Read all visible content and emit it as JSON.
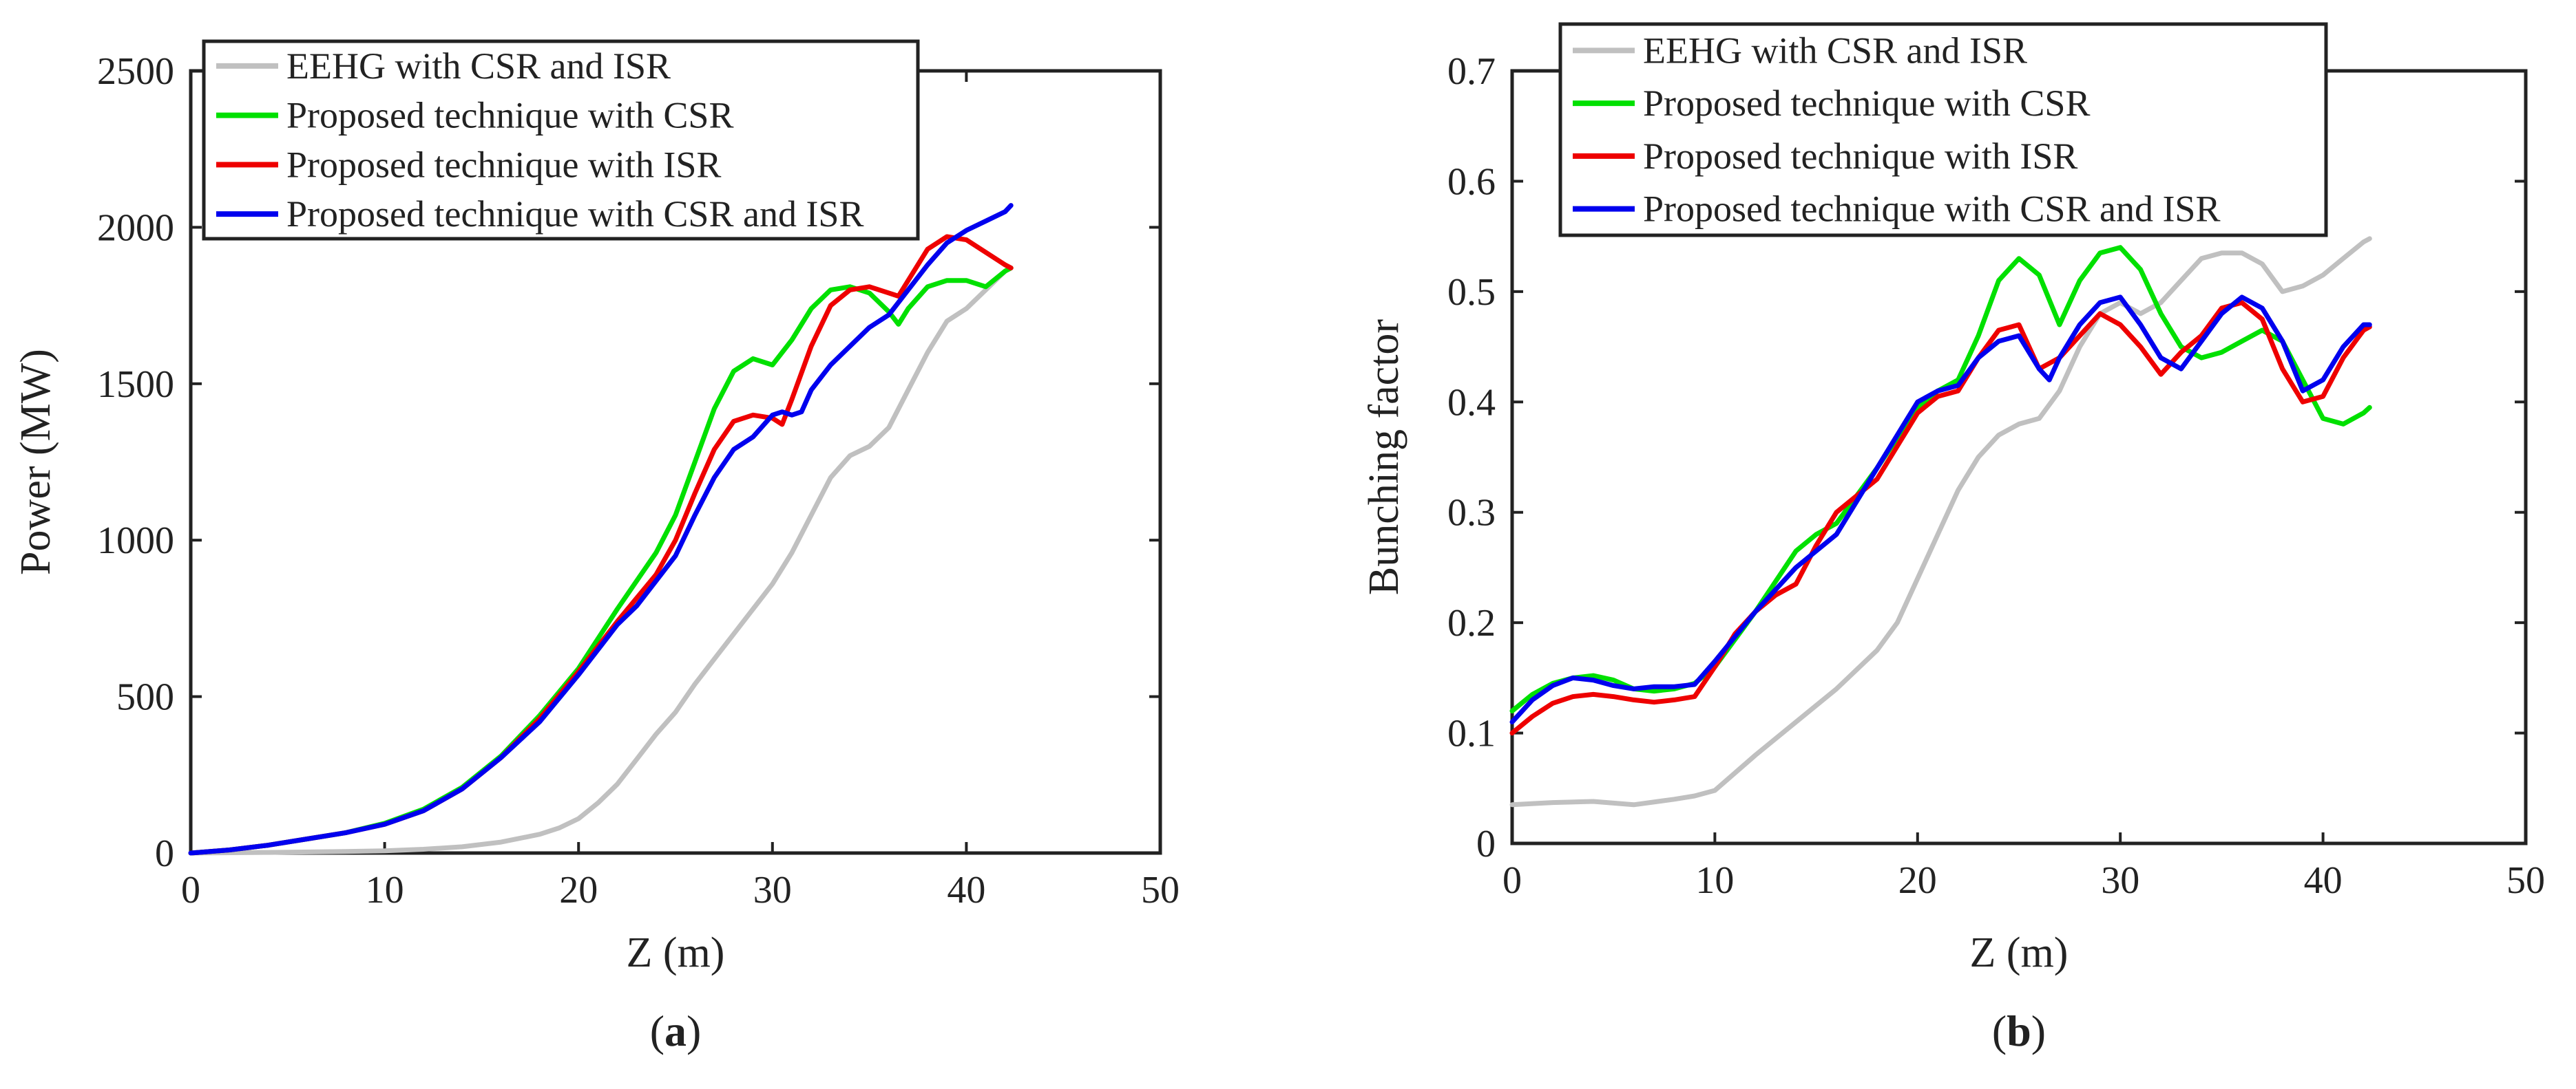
{
  "chart_data": [
    {
      "type": "line",
      "panel_label": "(a)",
      "panel_letter": "a",
      "xlabel": "Z (m)",
      "ylabel": "Power (MW)",
      "xlim": [
        0,
        50
      ],
      "ylim": [
        0,
        2500
      ],
      "xticks": [
        0,
        10,
        20,
        30,
        40,
        50
      ],
      "yticks": [
        0,
        500,
        1000,
        1500,
        2000,
        2500
      ],
      "grid": false,
      "legend_position": "top-left",
      "series": [
        {
          "name": "EEHG with CSR and ISR",
          "color": "#c0c0c0",
          "x": [
            0,
            4,
            8,
            10,
            12,
            14,
            16,
            18,
            19,
            20,
            21,
            22,
            23,
            24,
            25,
            26,
            27,
            28,
            29,
            30,
            31,
            32,
            33,
            34,
            35,
            36,
            37,
            38,
            39,
            40,
            41,
            42,
            42.3
          ],
          "y": [
            0,
            2,
            5,
            7,
            12,
            20,
            35,
            60,
            80,
            110,
            160,
            220,
            300,
            380,
            450,
            540,
            620,
            700,
            780,
            860,
            960,
            1080,
            1200,
            1270,
            1300,
            1360,
            1480,
            1600,
            1700,
            1740,
            1800,
            1860,
            1870
          ]
        },
        {
          "name": "Proposed technique with CSR",
          "color": "#00e000",
          "x": [
            0,
            2,
            4,
            6,
            8,
            10,
            12,
            14,
            16,
            18,
            20,
            22,
            24,
            25,
            26,
            27,
            28,
            29,
            30,
            31,
            32,
            33,
            34,
            35,
            36,
            36.5,
            37,
            38,
            39,
            40,
            41,
            42,
            42.3
          ],
          "y": [
            0,
            10,
            25,
            45,
            65,
            95,
            140,
            210,
            310,
            440,
            590,
            780,
            960,
            1080,
            1250,
            1420,
            1540,
            1580,
            1560,
            1640,
            1740,
            1800,
            1810,
            1790,
            1730,
            1690,
            1740,
            1810,
            1830,
            1830,
            1810,
            1860,
            1870
          ]
        },
        {
          "name": "Proposed technique with ISR",
          "color": "#ee0000",
          "x": [
            0,
            2,
            4,
            6,
            8,
            10,
            12,
            14,
            16,
            18,
            20,
            22,
            24,
            25,
            26,
            27,
            28,
            29,
            30,
            30.5,
            31,
            32,
            33,
            34,
            35,
            36,
            36.5,
            37,
            38,
            39,
            40,
            41,
            42,
            42.3
          ],
          "y": [
            0,
            10,
            25,
            45,
            65,
            92,
            135,
            205,
            305,
            430,
            580,
            740,
            890,
            1000,
            1150,
            1290,
            1380,
            1400,
            1390,
            1370,
            1450,
            1620,
            1750,
            1800,
            1810,
            1790,
            1780,
            1830,
            1930,
            1970,
            1960,
            1920,
            1880,
            1870
          ]
        },
        {
          "name": "Proposed technique with CSR and ISR",
          "color": "#0000ee",
          "x": [
            0,
            2,
            4,
            6,
            8,
            10,
            12,
            14,
            16,
            18,
            20,
            22,
            23,
            24,
            25,
            26,
            27,
            28,
            29,
            30,
            30.5,
            31,
            31.5,
            32,
            33,
            34,
            35,
            36,
            37,
            38,
            39,
            40,
            41,
            42,
            42.3
          ],
          "y": [
            0,
            10,
            25,
            45,
            65,
            92,
            135,
            205,
            305,
            420,
            570,
            730,
            790,
            870,
            950,
            1080,
            1200,
            1290,
            1330,
            1400,
            1410,
            1400,
            1410,
            1480,
            1560,
            1620,
            1680,
            1720,
            1800,
            1880,
            1950,
            1990,
            2020,
            2050,
            2070
          ]
        }
      ]
    },
    {
      "type": "line",
      "panel_label": "(b)",
      "panel_letter": "b",
      "xlabel": "Z (m)",
      "ylabel": "Bunching factor",
      "xlim": [
        0,
        50
      ],
      "ylim": [
        0,
        0.7
      ],
      "xticks": [
        0,
        10,
        20,
        30,
        40,
        50
      ],
      "yticks": [
        0,
        0.1,
        0.2,
        0.3,
        0.4,
        0.5,
        0.6,
        0.7
      ],
      "grid": false,
      "legend_position": "top-left",
      "series": [
        {
          "name": "EEHG with CSR and ISR",
          "color": "#c0c0c0",
          "x": [
            0,
            2,
            4,
            6,
            8,
            9,
            10,
            12,
            14,
            16,
            18,
            19,
            20,
            21,
            22,
            23,
            24,
            25,
            26,
            27,
            28,
            29,
            30,
            31,
            32,
            33,
            34,
            35,
            36,
            37,
            38,
            39,
            40,
            41,
            42,
            42.3
          ],
          "y": [
            0.035,
            0.037,
            0.038,
            0.035,
            0.04,
            0.043,
            0.048,
            0.08,
            0.11,
            0.14,
            0.175,
            0.2,
            0.24,
            0.28,
            0.32,
            0.35,
            0.37,
            0.38,
            0.385,
            0.41,
            0.45,
            0.48,
            0.49,
            0.48,
            0.49,
            0.51,
            0.53,
            0.535,
            0.535,
            0.525,
            0.5,
            0.505,
            0.515,
            0.53,
            0.545,
            0.548
          ]
        },
        {
          "name": "Proposed technique with CSR",
          "color": "#00e000",
          "x": [
            0,
            1,
            2,
            3,
            4,
            5,
            6,
            7,
            8,
            9,
            10,
            12,
            14,
            15,
            16,
            18,
            20,
            21,
            22,
            23,
            24,
            25,
            26,
            27,
            28,
            29,
            30,
            31,
            32,
            33,
            34,
            35,
            36,
            37,
            38,
            39,
            40,
            41,
            42,
            42.3
          ],
          "y": [
            0.12,
            0.135,
            0.145,
            0.15,
            0.152,
            0.148,
            0.14,
            0.138,
            0.14,
            0.145,
            0.16,
            0.21,
            0.265,
            0.28,
            0.29,
            0.34,
            0.395,
            0.41,
            0.42,
            0.46,
            0.51,
            0.53,
            0.515,
            0.47,
            0.51,
            0.535,
            0.54,
            0.52,
            0.48,
            0.45,
            0.44,
            0.445,
            0.455,
            0.465,
            0.455,
            0.42,
            0.385,
            0.38,
            0.39,
            0.395
          ]
        },
        {
          "name": "Proposed technique with ISR",
          "color": "#ee0000",
          "x": [
            0,
            1,
            2,
            3,
            4,
            5,
            6,
            7,
            8,
            9,
            10,
            11,
            12,
            13,
            14,
            15,
            16,
            18,
            20,
            21,
            22,
            23,
            24,
            25,
            26,
            27,
            28,
            29,
            30,
            31,
            32,
            33,
            34,
            35,
            36,
            37,
            38,
            39,
            40,
            41,
            42,
            42.3
          ],
          "y": [
            0.1,
            0.115,
            0.127,
            0.133,
            0.135,
            0.133,
            0.13,
            0.128,
            0.13,
            0.133,
            0.16,
            0.19,
            0.21,
            0.225,
            0.235,
            0.27,
            0.3,
            0.33,
            0.39,
            0.405,
            0.41,
            0.44,
            0.465,
            0.47,
            0.43,
            0.44,
            0.46,
            0.48,
            0.47,
            0.45,
            0.425,
            0.445,
            0.46,
            0.485,
            0.49,
            0.475,
            0.43,
            0.4,
            0.405,
            0.44,
            0.465,
            0.468
          ]
        },
        {
          "name": "Proposed technique with CSR and ISR",
          "color": "#0000ee",
          "x": [
            0,
            1,
            2,
            3,
            4,
            5,
            6,
            7,
            8,
            9,
            10,
            12,
            14,
            16,
            18,
            20,
            21,
            22,
            23,
            24,
            25,
            26,
            26.5,
            27,
            28,
            29,
            30,
            31,
            32,
            33,
            34,
            35,
            36,
            37,
            38,
            39,
            40,
            41,
            42,
            42.3
          ],
          "y": [
            0.11,
            0.13,
            0.143,
            0.15,
            0.148,
            0.143,
            0.14,
            0.142,
            0.142,
            0.144,
            0.165,
            0.21,
            0.25,
            0.28,
            0.34,
            0.4,
            0.41,
            0.415,
            0.44,
            0.455,
            0.46,
            0.43,
            0.42,
            0.44,
            0.47,
            0.49,
            0.495,
            0.47,
            0.44,
            0.43,
            0.455,
            0.48,
            0.495,
            0.485,
            0.455,
            0.41,
            0.42,
            0.45,
            0.47,
            0.47
          ]
        }
      ]
    }
  ]
}
